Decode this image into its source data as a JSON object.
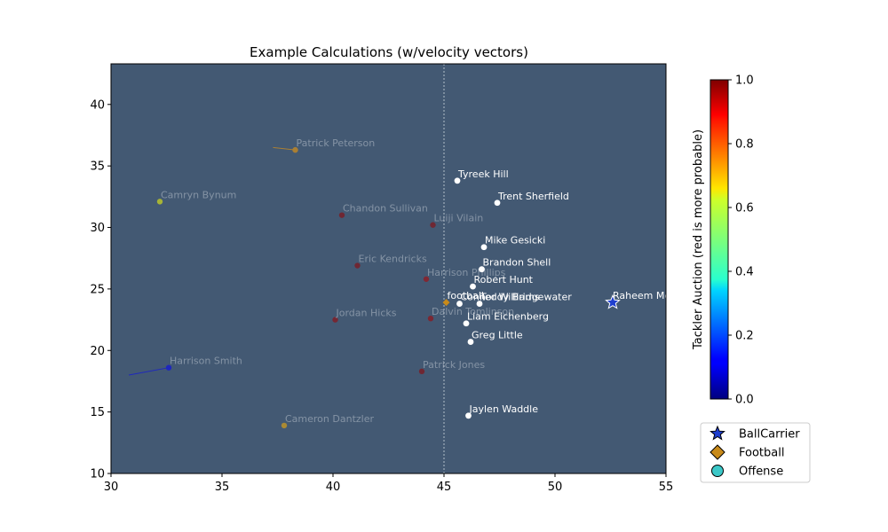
{
  "chart_data": {
    "type": "scatter",
    "title": "Example Calculations (w/velocity vectors)",
    "xlabel": "",
    "ylabel": "",
    "xlim": [
      30,
      55
    ],
    "ylim": [
      10,
      43.3
    ],
    "xticks": [
      30,
      35,
      40,
      45,
      50,
      55
    ],
    "yticks": [
      10,
      15,
      20,
      25,
      30,
      35,
      40
    ],
    "plot_background": "#435973",
    "line_of_scrimmage_x": 45,
    "grid": false,
    "colorbar": {
      "label": "Tackler Auction (red is more probable)",
      "range": [
        0,
        1
      ],
      "ticks": [
        "0.0",
        "0.2",
        "0.4",
        "0.6",
        "0.8",
        "1.0"
      ],
      "colormap": "jet"
    },
    "legend": {
      "position": "bottom-right",
      "entries": [
        {
          "label": "BallCarrier",
          "marker": "star",
          "color": "#1f3fcf"
        },
        {
          "label": "Football",
          "marker": "diamond",
          "color": "#c88a1a"
        },
        {
          "label": "Offense",
          "marker": "circle",
          "color": "#3cc8c8"
        }
      ]
    },
    "offense": [
      {
        "name": "Tyreek Hill",
        "x": 45.6,
        "y": 33.8
      },
      {
        "name": "Trent Sherfield",
        "x": 47.4,
        "y": 32.0
      },
      {
        "name": "Mike Gesicki",
        "x": 46.8,
        "y": 28.4
      },
      {
        "name": "Brandon Shell",
        "x": 46.7,
        "y": 26.6
      },
      {
        "name": "Robert Hunt",
        "x": 46.3,
        "y": 25.2
      },
      {
        "name": "Connor Williams",
        "x": 45.7,
        "y": 23.8
      },
      {
        "name": "Teddy Bridgewater",
        "x": 46.6,
        "y": 23.8
      },
      {
        "name": "Liam Eichenberg",
        "x": 46.0,
        "y": 22.2
      },
      {
        "name": "Greg Little",
        "x": 46.2,
        "y": 20.7
      },
      {
        "name": "Jaylen Waddle",
        "x": 46.1,
        "y": 14.7
      }
    ],
    "defense": [
      {
        "name": "Patrick Peterson",
        "x": 38.3,
        "y": 36.3,
        "prob": 0.72,
        "vx": -0.5,
        "vy": 0.1
      },
      {
        "name": "Camryn Bynum",
        "x": 32.2,
        "y": 32.1,
        "prob": 0.62,
        "vx": 0,
        "vy": 0
      },
      {
        "name": "Chandon Sullivan",
        "x": 40.4,
        "y": 31.0,
        "prob": 0.98,
        "vx": 0,
        "vy": 0
      },
      {
        "name": "Luiji Vilain",
        "x": 44.5,
        "y": 30.2,
        "prob": 0.98,
        "vx": 0,
        "vy": 0
      },
      {
        "name": "Eric Kendricks",
        "x": 41.1,
        "y": 26.9,
        "prob": 0.98,
        "vx": 0,
        "vy": 0
      },
      {
        "name": "Harrison Phillips",
        "x": 44.2,
        "y": 25.8,
        "prob": 0.95,
        "vx": 0,
        "vy": 0
      },
      {
        "name": "Jordan Hicks",
        "x": 40.1,
        "y": 22.5,
        "prob": 0.97,
        "vx": 0,
        "vy": 0
      },
      {
        "name": "Dalvin Tomlinson",
        "x": 44.4,
        "y": 22.6,
        "prob": 0.96,
        "vx": 0,
        "vy": 0
      },
      {
        "name": "Harrison Smith",
        "x": 32.6,
        "y": 18.6,
        "prob": 0.12,
        "vx": -0.9,
        "vy": -0.3
      },
      {
        "name": "Patrick Jones",
        "x": 44.0,
        "y": 18.3,
        "prob": 0.98,
        "vx": 0,
        "vy": 0
      },
      {
        "name": "Cameron Dantzler",
        "x": 37.8,
        "y": 13.9,
        "prob": 0.7,
        "vx": 0,
        "vy": 0
      }
    ],
    "football": {
      "label": "football",
      "x": 45.1,
      "y": 23.9
    },
    "ball_carrier": {
      "name": "Raheem Mostert",
      "x": 52.6,
      "y": 23.9
    }
  }
}
